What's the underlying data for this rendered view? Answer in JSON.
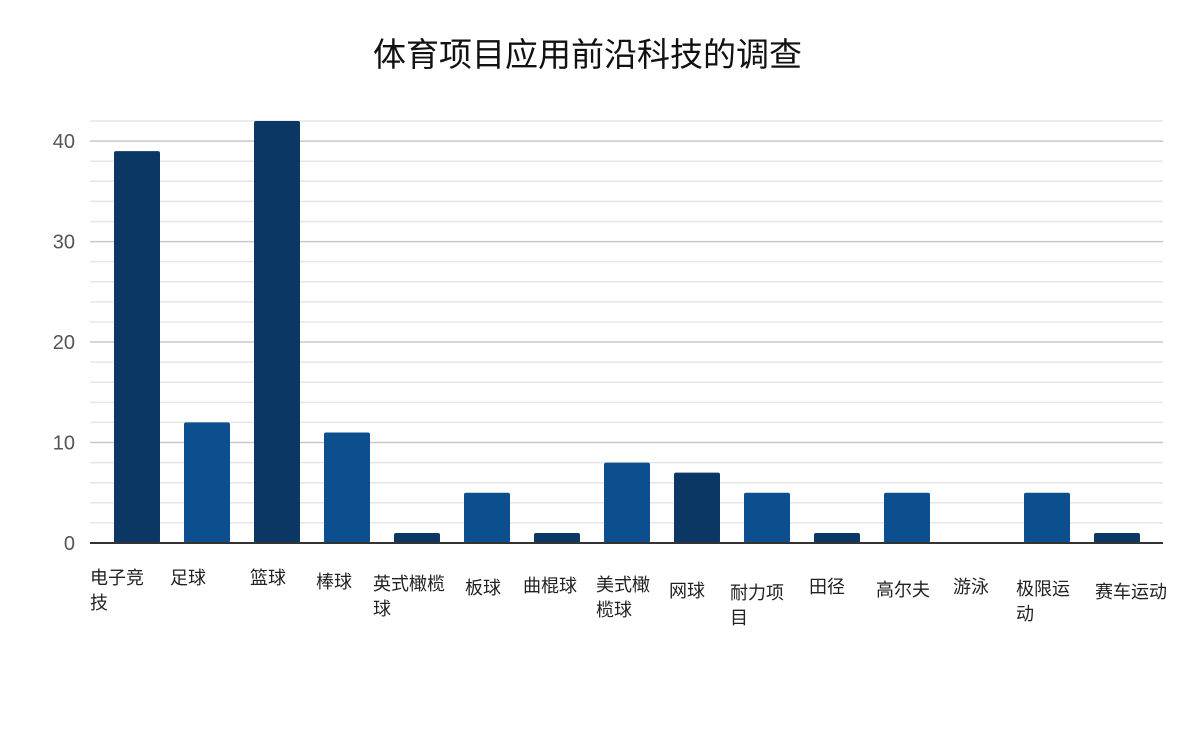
{
  "title": "体育项目应用前沿科技的调查",
  "colors": {
    "dark": "#0a3763",
    "mid": "#0c4f8f",
    "grid_major": "#c8c8c8",
    "grid_minor": "#e6e6e6",
    "axis": "#333333"
  },
  "chart_data": {
    "type": "bar",
    "title": "体育项目应用前沿科技的调查",
    "xlabel": "",
    "ylabel": "",
    "ylim": [
      0,
      42
    ],
    "yticks": [
      0,
      10,
      20,
      30,
      40
    ],
    "grid": true,
    "categories": [
      "电子竞技",
      "足球",
      "篮球",
      "棒球",
      "英式橄榄球",
      "板球",
      "曲棍球",
      "美式橄榄球",
      "网球",
      "耐力项目",
      "田径",
      "高尔夫",
      "游泳",
      "极限运动",
      "赛车运动"
    ],
    "values": [
      39,
      12,
      42,
      11,
      1,
      5,
      1,
      8,
      7,
      5,
      1,
      5,
      0,
      5,
      1
    ],
    "bar_colors": [
      "#0a3763",
      "#0c4f8f",
      "#0a3763",
      "#0c4f8f",
      "#0a3763",
      "#0c4f8f",
      "#0a3763",
      "#0c4f8f",
      "#0a3763",
      "#0c4f8f",
      "#0a3763",
      "#0c4f8f",
      "#0a3763",
      "#0c4f8f",
      "#0a3763"
    ]
  }
}
